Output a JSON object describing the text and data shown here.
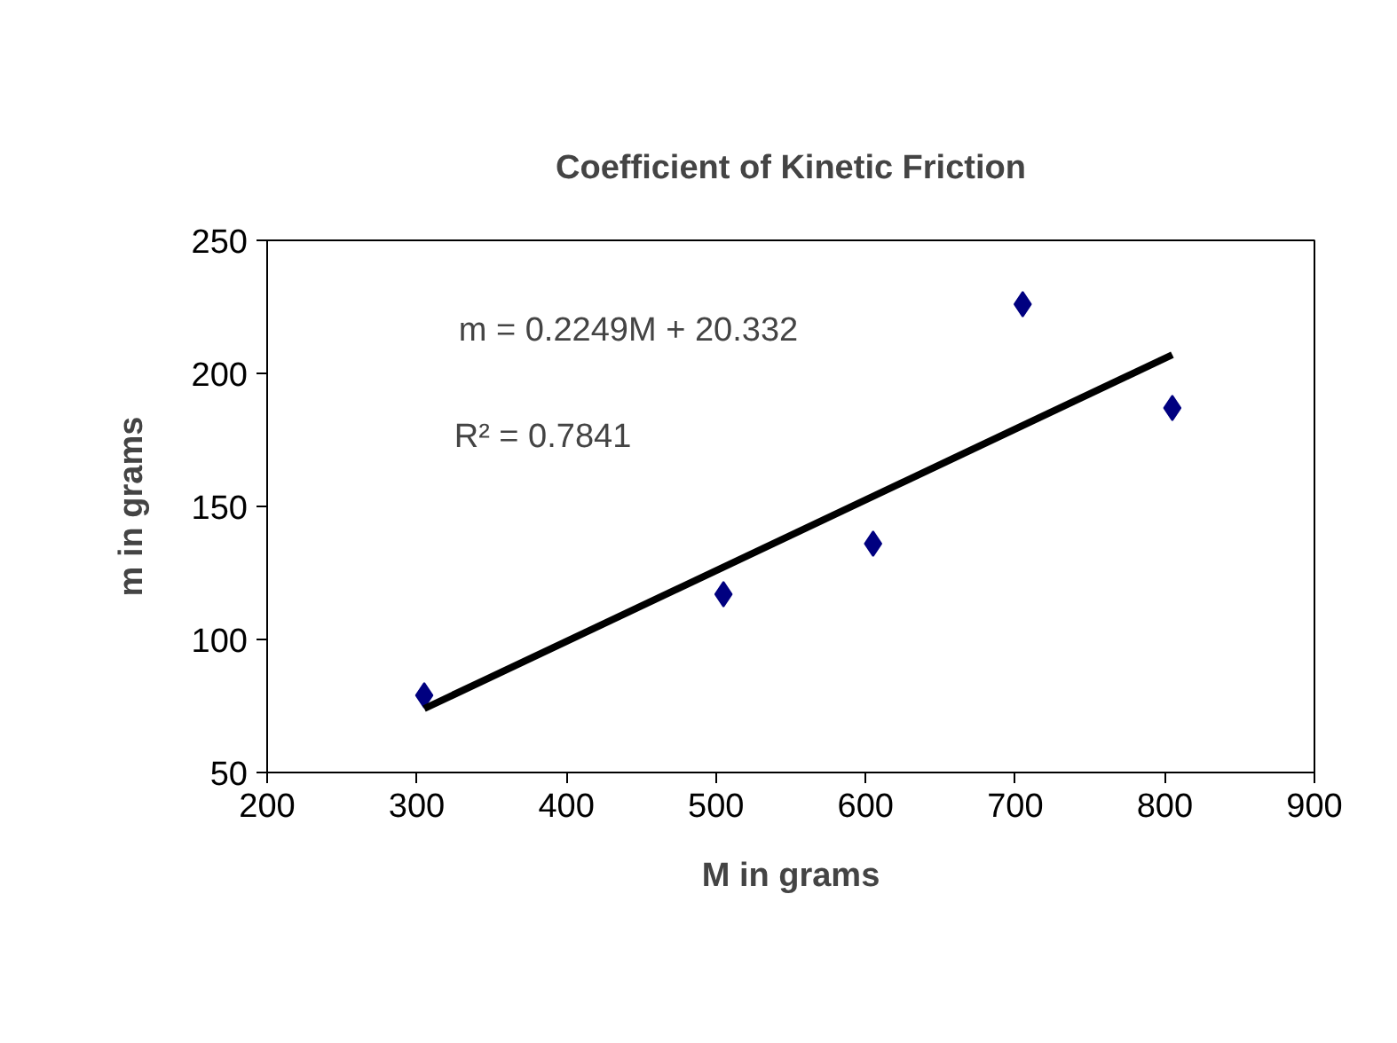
{
  "chart_data": {
    "type": "scatter",
    "title": "Coefficient of Kinetic Friction",
    "xlabel": "M in grams",
    "ylabel": "m in grams",
    "x": [
      305,
      505,
      605,
      705,
      805
    ],
    "series": [
      {
        "color": "#000080",
        "marker": "diamond",
        "values": [
          79,
          117,
          136,
          226,
          187
        ]
      },
      {
        "type": "line",
        "color": "#000000",
        "x": [
          305,
          805
        ],
        "values": [
          74,
          207
        ],
        "line_style": "solid"
      }
    ],
    "annotations": [
      "m = 0.2249M + 20.332",
      "R² = 0.7841"
    ],
    "xlim": [
      200,
      900
    ],
    "ylim": [
      50,
      250
    ],
    "xticks": [
      200,
      300,
      400,
      500,
      600,
      700,
      800,
      900
    ],
    "yticks": [
      50,
      100,
      150,
      200,
      250
    ],
    "grid": false
  }
}
